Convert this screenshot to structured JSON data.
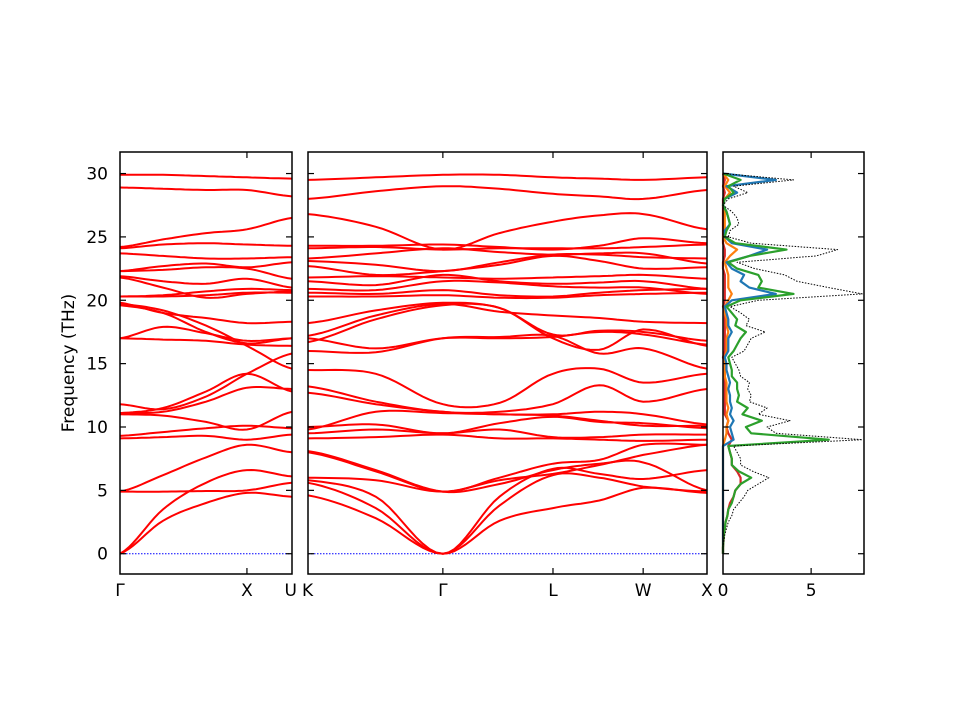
{
  "chart_data": {
    "type": "line",
    "title": "",
    "ylabel": "Frequency (THz)",
    "ylim": [
      -1.6,
      31.7
    ],
    "yticks": [
      0,
      5,
      10,
      15,
      20,
      25,
      30
    ],
    "band_color": "#ff0000",
    "zero_line_color": "#0000ff",
    "panels": [
      {
        "name": "gamma-x-u",
        "kpath_labels": [
          "Γ",
          "X",
          "U"
        ],
        "kpath_positions": [
          0,
          0.738,
          1
        ],
        "sample_positions": [
          0,
          0.25,
          0.5,
          0.738,
          1
        ],
        "bands": [
          [
            0,
            2.6,
            4.0,
            4.8,
            4.5
          ],
          [
            0,
            3.5,
            5.6,
            6.6,
            6.1
          ],
          [
            4.9,
            4.9,
            4.95,
            5.0,
            5.6
          ],
          [
            4.9,
            6.2,
            7.6,
            8.6,
            8.0
          ],
          [
            9.1,
            9.2,
            9.3,
            9.0,
            9.4
          ],
          [
            9.3,
            9.6,
            9.9,
            10.1,
            9.9
          ],
          [
            11.0,
            10.9,
            10.4,
            9.8,
            11.2
          ],
          [
            11.1,
            11.2,
            12.0,
            13.1,
            13.0
          ],
          [
            11.1,
            11.5,
            12.8,
            14.2,
            12.8
          ],
          [
            11.8,
            11.4,
            12.4,
            14.2,
            15.8
          ],
          [
            17.0,
            16.9,
            16.8,
            16.5,
            16.4
          ],
          [
            17.0,
            17.9,
            17.4,
            16.8,
            17.0
          ],
          [
            19.6,
            19.0,
            17.5,
            16.6,
            17.0
          ],
          [
            19.7,
            19.2,
            18.0,
            16.4,
            14.6
          ],
          [
            19.8,
            19.0,
            18.6,
            18.2,
            18.3
          ],
          [
            20.3,
            20.3,
            20.4,
            20.6,
            20.6
          ],
          [
            20.3,
            20.4,
            20.7,
            20.9,
            20.8
          ],
          [
            21.8,
            21.0,
            20.2,
            20.5,
            20.7
          ],
          [
            21.9,
            21.5,
            21.3,
            21.7,
            21.0
          ],
          [
            22.3,
            22.4,
            22.6,
            22.5,
            21.7
          ],
          [
            22.3,
            22.7,
            22.9,
            22.6,
            23.0
          ],
          [
            23.7,
            23.5,
            23.3,
            23.3,
            23.4
          ],
          [
            24.1,
            24.4,
            24.5,
            24.4,
            24.3
          ],
          [
            24.2,
            24.8,
            25.3,
            25.6,
            26.5
          ],
          [
            28.9,
            28.8,
            28.7,
            28.7,
            28.2
          ],
          [
            29.9,
            29.9,
            29.8,
            29.7,
            29.6
          ]
        ]
      },
      {
        "name": "k-gamma-l-w-x",
        "kpath_labels": [
          "K",
          "Γ",
          "L",
          "W",
          "X"
        ],
        "kpath_positions": [
          0,
          0.338,
          0.614,
          0.84,
          1
        ],
        "sample_positions": [
          0,
          0.17,
          0.338,
          0.48,
          0.614,
          0.73,
          0.84,
          1
        ],
        "bands": [
          [
            4.6,
            2.8,
            0,
            2.6,
            3.6,
            4.2,
            5.2,
            4.8
          ],
          [
            5.6,
            3.6,
            0,
            3.8,
            6.2,
            6.0,
            5.3,
            4.9
          ],
          [
            5.8,
            4.5,
            0,
            4.5,
            6.7,
            6.3,
            5.9,
            6.6
          ],
          [
            6.0,
            5.8,
            4.9,
            5.8,
            6.3,
            7.0,
            7.8,
            8.6
          ],
          [
            8.0,
            6.5,
            4.9,
            6.0,
            7.1,
            7.4,
            8.6,
            8.6
          ],
          [
            8.1,
            6.6,
            4.9,
            5.5,
            6.6,
            7.1,
            7.2,
            5.0
          ],
          [
            9.1,
            9.2,
            9.4,
            9.1,
            9.1,
            9.0,
            8.9,
            9.0
          ],
          [
            9.5,
            9.8,
            9.5,
            9.8,
            9.2,
            9.2,
            9.4,
            9.4
          ],
          [
            10.0,
            10.2,
            9.5,
            10.3,
            10.8,
            10.4,
            10.3,
            9.9
          ],
          [
            9.8,
            11.2,
            11.1,
            11.0,
            10.9,
            10.5,
            10.1,
            10.1
          ],
          [
            12.7,
            11.8,
            11.2,
            11.0,
            11.0,
            11.2,
            11.0,
            10.2
          ],
          [
            13.2,
            12.0,
            11.2,
            11.2,
            11.8,
            13.3,
            12.0,
            13.0
          ],
          [
            14.5,
            14.2,
            11.8,
            11.9,
            14.2,
            14.6,
            13.5,
            14.2
          ],
          [
            16.0,
            15.9,
            17.0,
            17.1,
            17.2,
            15.8,
            16.2,
            14.6
          ],
          [
            17.0,
            16.2,
            17.0,
            17.0,
            17.1,
            17.5,
            17.3,
            16.5
          ],
          [
            17.2,
            18.8,
            19.7,
            19.1,
            18.8,
            18.6,
            18.3,
            18.2
          ],
          [
            18.2,
            19.2,
            19.8,
            19.4,
            17.3,
            17.6,
            17.5,
            16.8
          ],
          [
            16.7,
            18.5,
            19.6,
            19.4,
            17.0,
            16.1,
            17.7,
            16.4
          ],
          [
            20.3,
            20.3,
            20.4,
            20.2,
            20.2,
            20.4,
            20.5,
            20.6
          ],
          [
            20.6,
            20.5,
            20.8,
            20.4,
            20.3,
            20.6,
            20.8,
            20.9
          ],
          [
            20.9,
            20.8,
            21.5,
            21.4,
            21.1,
            21.0,
            21.0,
            20.5
          ],
          [
            21.5,
            21.2,
            22.0,
            21.5,
            21.3,
            21.4,
            21.5,
            20.9
          ],
          [
            21.8,
            21.9,
            21.8,
            21.7,
            21.8,
            21.9,
            22.0,
            21.7
          ],
          [
            22.7,
            22.0,
            22.3,
            22.8,
            23.5,
            23.1,
            22.5,
            22.6
          ],
          [
            23.1,
            22.8,
            22.3,
            23.0,
            23.6,
            23.6,
            23.4,
            23.3
          ],
          [
            23.3,
            23.7,
            24.1,
            23.8,
            23.6,
            23.7,
            23.7,
            22.9
          ],
          [
            24.1,
            24.2,
            24.0,
            24.1,
            24.1,
            24.1,
            24.2,
            24.4
          ],
          [
            24.3,
            24.3,
            24.4,
            24.2,
            24.0,
            24.3,
            24.9,
            24.5
          ],
          [
            26.8,
            25.8,
            24.0,
            25.3,
            26.2,
            26.7,
            26.8,
            25.6
          ],
          [
            28.0,
            28.6,
            29.0,
            28.8,
            28.4,
            28.2,
            28.0,
            28.7
          ],
          [
            29.5,
            29.7,
            29.9,
            29.9,
            29.7,
            29.6,
            29.5,
            29.7
          ]
        ]
      }
    ],
    "dos": {
      "xlim": [
        0,
        8.0
      ],
      "xticks": [
        0,
        5
      ],
      "freq_start": 0,
      "freq_step": 0.5,
      "total": {
        "color": "#000000",
        "style": "dotted",
        "values": [
          0,
          0,
          0.05,
          0.1,
          0.2,
          0.3,
          0.5,
          0.6,
          0.9,
          1.2,
          1.4,
          2.0,
          2.6,
          1.7,
          1.0,
          1.0,
          0.8,
          0.6,
          7.9,
          3.0,
          2.5,
          3.8,
          2.0,
          2.5,
          1.5,
          1.6,
          1.4,
          1.5,
          1.0,
          0.9,
          0.7,
          0.5,
          1.2,
          1.4,
          1.6,
          2.4,
          1.3,
          1.5,
          1.0,
          0.4,
          2.0,
          7.9,
          6.0,
          4.2,
          3.5,
          1.8,
          0.8,
          5.3,
          6.5,
          1.6,
          0.3,
          0.4,
          0.9,
          0.8,
          0.5,
          0,
          0.3,
          1.4,
          0.6,
          4.0,
          0
        ]
      },
      "partials": [
        {
          "color": "#d62728",
          "values": [
            0,
            0,
            0.03,
            0.05,
            0.1,
            0.15,
            0.25,
            0.3,
            0.4,
            0.6,
            0.7,
            1.0,
            1.0,
            0.8,
            0.5,
            0.5,
            0.4,
            0.3,
            0.5,
            0.3,
            0.2,
            0.3,
            0.1,
            0.1,
            0.1,
            0.1,
            0.1,
            0.1,
            0.1,
            0.1,
            0.1,
            0,
            0.1,
            0.1,
            0.1,
            0.1,
            0.1,
            0.1,
            0.1,
            0,
            0.1,
            0.1,
            0.1,
            0.1,
            0.1,
            0,
            0,
            0.1,
            0.1,
            0,
            0,
            0,
            0,
            0,
            0,
            0,
            0,
            0.1,
            0,
            0.1,
            0
          ]
        },
        {
          "color": "#ff7f0e",
          "values": [
            0,
            0,
            0,
            0,
            0,
            0,
            0,
            0,
            0,
            0,
            0,
            0,
            0,
            0,
            0,
            0,
            0,
            0,
            0.1,
            0.2,
            0.2,
            0.3,
            0.2,
            0.3,
            0.2,
            0.2,
            0.2,
            0.2,
            0.1,
            0.1,
            0.1,
            0.1,
            0.2,
            0.2,
            0.2,
            0.3,
            0.2,
            0.2,
            0.1,
            0.1,
            0.3,
            0.5,
            0.3,
            0.3,
            0.3,
            0.2,
            0.1,
            0.4,
            0.8,
            0.2,
            0,
            0.1,
            0.1,
            0.1,
            0.1,
            0,
            0.1,
            0.4,
            0.1,
            0.3,
            0
          ]
        },
        {
          "color": "#1f77b4",
          "values": [
            0,
            0,
            0,
            0,
            0,
            0,
            0,
            0,
            0,
            0,
            0,
            0,
            0,
            0,
            0,
            0,
            0,
            0,
            0.6,
            0.5,
            0.4,
            0.6,
            0.4,
            0.5,
            0.4,
            0.4,
            0.3,
            0.4,
            0.3,
            0.2,
            0.2,
            0.1,
            0.3,
            0.3,
            0.3,
            0.5,
            0.3,
            0.3,
            0.2,
            0.1,
            0.5,
            3.0,
            1.5,
            1.0,
            1.2,
            0.5,
            0.2,
            1.5,
            2.5,
            0.5,
            0.1,
            0.1,
            0.4,
            0.3,
            0.2,
            0,
            0.1,
            0.8,
            0.2,
            3.0,
            0
          ]
        },
        {
          "color": "#2ca02c",
          "values": [
            0,
            0,
            0.02,
            0.05,
            0.1,
            0.15,
            0.25,
            0.3,
            0.5,
            0.6,
            0.7,
            1.0,
            1.6,
            0.9,
            0.5,
            0.5,
            0.4,
            0.3,
            6.0,
            1.6,
            1.3,
            2.2,
            1.1,
            1.4,
            0.8,
            0.9,
            0.8,
            0.8,
            0.5,
            0.5,
            0.4,
            0.3,
            0.6,
            0.8,
            1.0,
            1.3,
            0.7,
            0.8,
            0.5,
            0.2,
            1.0,
            4.0,
            2.0,
            2.2,
            2.0,
            0.8,
            0.3,
            1.5,
            3.6,
            0.7,
            0.1,
            0.2,
            0.4,
            0.3,
            0.2,
            0,
            0.1,
            0.6,
            0.3,
            1.0,
            0
          ]
        }
      ]
    }
  }
}
